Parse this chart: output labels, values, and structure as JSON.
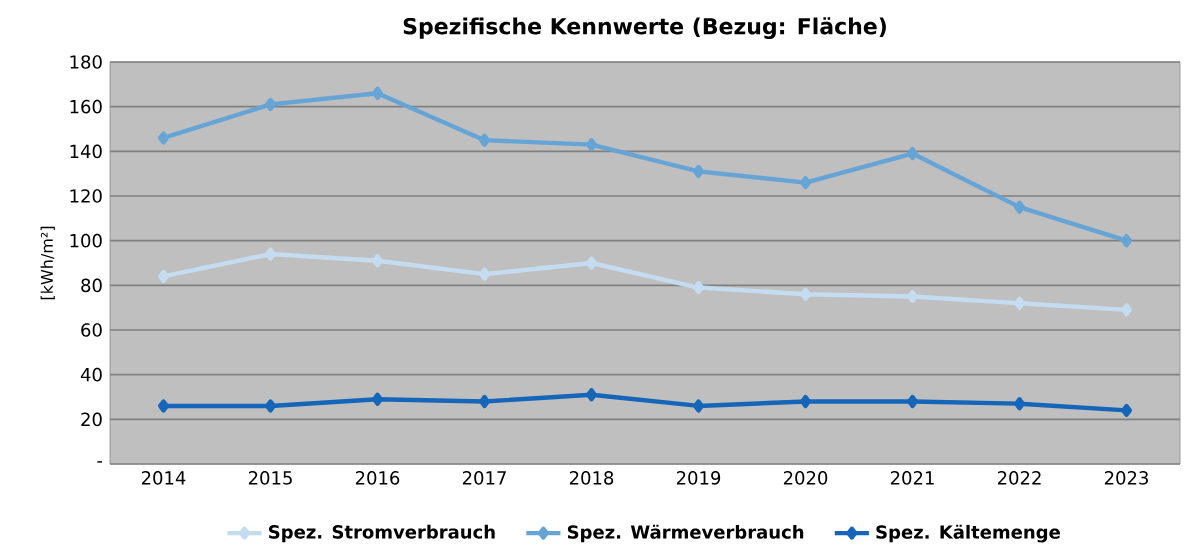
{
  "chart_data": {
    "type": "line",
    "title": "Spezifische Kennwerte (Bezug: Fläche)",
    "ylabel": "[kWh/m²]",
    "categories": [
      "2014",
      "2015",
      "2016",
      "2017",
      "2018",
      "2019",
      "2020",
      "2021",
      "2022",
      "2023"
    ],
    "series": [
      {
        "name": "Spez. Stromverbrauch",
        "color": "#c5dcf0",
        "values": [
          84,
          94,
          91,
          85,
          90,
          79,
          76,
          75,
          72,
          69
        ]
      },
      {
        "name": "Spez. Wärmeverbrauch",
        "color": "#67a4d6",
        "values": [
          146,
          161,
          166,
          145,
          143,
          131,
          126,
          139,
          115,
          100
        ]
      },
      {
        "name": "Spez. Kältemenge",
        "color": "#1565b8",
        "values": [
          26,
          26,
          29,
          28,
          31,
          26,
          28,
          28,
          27,
          24
        ]
      }
    ],
    "ylim": [
      0,
      180
    ],
    "yticks": [
      {
        "value": 0,
        "label": "-"
      },
      20,
      40,
      60,
      80,
      100,
      120,
      140,
      160,
      180
    ],
    "grid": "y",
    "legend": "bottom",
    "marker": "diamond",
    "line_style": "solid"
  }
}
